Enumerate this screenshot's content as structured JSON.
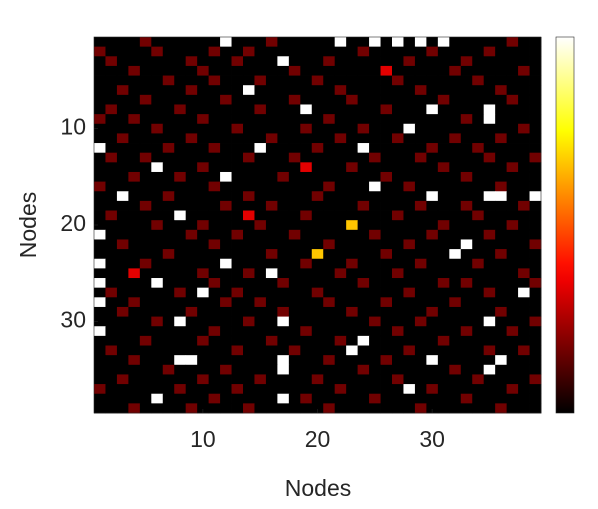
{
  "chart_data": {
    "type": "heatmap",
    "colormap": "hot",
    "xlabel": "Nodes",
    "ylabel": "Nodes",
    "xlim": [
      0.5,
      39.5
    ],
    "ylim": [
      0.5,
      39.5
    ],
    "xticks": [
      10,
      20,
      30
    ],
    "yticks": [
      10,
      20,
      30
    ],
    "zlim": [
      0,
      6
    ],
    "colorbar": true,
    "z": [
      [
        0,
        0,
        0,
        0,
        1,
        0,
        0,
        0,
        0,
        0,
        0,
        6,
        0,
        0,
        0,
        1,
        0,
        0,
        0,
        0,
        0,
        6,
        0,
        0,
        6,
        0,
        6,
        0,
        6,
        0,
        6,
        0,
        0,
        0,
        0,
        0,
        1,
        0,
        0
      ],
      [
        1,
        0,
        0,
        0,
        0,
        1,
        0,
        0,
        0,
        0,
        1,
        0,
        0,
        1,
        0,
        0,
        0,
        0,
        0,
        0,
        0,
        0,
        0,
        1,
        0,
        0,
        0,
        0,
        0,
        1,
        0,
        0,
        0,
        0,
        1,
        0,
        0,
        0,
        0
      ],
      [
        0,
        1,
        0,
        0,
        0,
        0,
        0,
        0,
        1,
        0,
        0,
        0,
        1,
        0,
        0,
        0,
        6,
        0,
        0,
        0,
        1,
        0,
        0,
        0,
        0,
        0,
        0,
        1,
        0,
        0,
        0,
        0,
        1,
        0,
        0,
        0,
        0,
        0,
        0
      ],
      [
        0,
        0,
        0,
        1,
        0,
        0,
        0,
        0,
        0,
        1,
        0,
        0,
        0,
        0,
        0,
        0,
        0,
        1,
        0,
        0,
        0,
        0,
        0,
        0,
        0,
        2,
        0,
        0,
        0,
        0,
        0,
        1,
        0,
        0,
        0,
        0,
        0,
        1,
        0
      ],
      [
        0,
        0,
        0,
        0,
        0,
        0,
        1,
        0,
        0,
        0,
        1,
        0,
        0,
        0,
        1,
        0,
        0,
        0,
        0,
        1,
        0,
        0,
        0,
        0,
        0,
        0,
        1,
        0,
        0,
        0,
        0,
        0,
        0,
        1,
        0,
        0,
        0,
        0,
        0
      ],
      [
        0,
        0,
        1,
        0,
        0,
        0,
        0,
        0,
        1,
        0,
        0,
        0,
        0,
        6,
        0,
        0,
        0,
        0,
        0,
        0,
        0,
        1,
        0,
        0,
        0,
        0,
        0,
        0,
        1,
        0,
        0,
        0,
        0,
        0,
        0,
        1,
        0,
        0,
        0
      ],
      [
        0,
        0,
        0,
        0,
        1,
        0,
        0,
        0,
        0,
        0,
        0,
        1,
        0,
        0,
        0,
        0,
        0,
        1,
        0,
        0,
        0,
        0,
        1,
        0,
        0,
        0,
        0,
        0,
        0,
        0,
        1,
        0,
        0,
        0,
        0,
        0,
        1,
        0,
        0
      ],
      [
        0,
        1,
        0,
        0,
        0,
        0,
        0,
        1,
        0,
        0,
        0,
        0,
        0,
        0,
        1,
        0,
        0,
        0,
        6,
        0,
        0,
        0,
        0,
        0,
        0,
        1,
        0,
        0,
        0,
        6,
        0,
        0,
        0,
        0,
        6,
        0,
        0,
        0,
        0
      ],
      [
        1,
        0,
        0,
        1,
        0,
        0,
        0,
        0,
        0,
        1,
        0,
        0,
        0,
        0,
        0,
        0,
        0,
        0,
        0,
        0,
        1,
        0,
        0,
        0,
        0,
        0,
        0,
        0,
        0,
        0,
        0,
        0,
        1,
        0,
        6,
        0,
        0,
        0,
        0
      ],
      [
        0,
        0,
        0,
        0,
        0,
        1,
        0,
        0,
        0,
        0,
        0,
        0,
        1,
        0,
        0,
        0,
        0,
        0,
        1,
        0,
        0,
        0,
        0,
        1,
        0,
        0,
        0,
        6,
        0,
        0,
        0,
        0,
        0,
        0,
        0,
        0,
        0,
        1,
        0
      ],
      [
        0,
        0,
        1,
        0,
        0,
        0,
        0,
        0,
        1,
        0,
        0,
        0,
        0,
        0,
        0,
        1,
        0,
        0,
        0,
        0,
        0,
        1,
        0,
        0,
        0,
        0,
        1,
        0,
        0,
        0,
        0,
        1,
        0,
        0,
        0,
        1,
        0,
        0,
        0
      ],
      [
        6,
        0,
        0,
        0,
        0,
        0,
        1,
        0,
        0,
        0,
        1,
        0,
        0,
        0,
        6,
        0,
        0,
        0,
        0,
        1,
        0,
        0,
        0,
        6,
        0,
        0,
        0,
        0,
        0,
        1,
        0,
        0,
        0,
        1,
        0,
        0,
        0,
        0,
        0
      ],
      [
        0,
        1,
        0,
        0,
        1,
        0,
        0,
        0,
        0,
        0,
        0,
        0,
        0,
        1,
        0,
        0,
        0,
        1,
        0,
        0,
        0,
        0,
        0,
        0,
        1,
        0,
        0,
        0,
        1,
        0,
        0,
        0,
        0,
        0,
        1,
        0,
        0,
        0,
        1
      ],
      [
        0,
        0,
        0,
        0,
        0,
        6,
        0,
        0,
        0,
        1,
        0,
        0,
        0,
        0,
        0,
        0,
        0,
        0,
        2,
        0,
        0,
        0,
        1,
        0,
        0,
        0,
        0,
        0,
        0,
        0,
        1,
        0,
        0,
        0,
        0,
        0,
        1,
        0,
        0
      ],
      [
        0,
        0,
        0,
        1,
        0,
        0,
        0,
        1,
        0,
        0,
        0,
        6,
        0,
        0,
        0,
        0,
        1,
        0,
        0,
        0,
        0,
        0,
        0,
        0,
        0,
        1,
        0,
        0,
        0,
        0,
        0,
        0,
        1,
        0,
        0,
        0,
        0,
        0,
        0
      ],
      [
        1,
        0,
        0,
        0,
        0,
        0,
        0,
        0,
        0,
        0,
        1,
        0,
        0,
        0,
        0,
        0,
        0,
        0,
        0,
        0,
        1,
        0,
        0,
        0,
        6,
        0,
        0,
        1,
        0,
        0,
        0,
        0,
        0,
        0,
        0,
        1,
        0,
        0,
        0
      ],
      [
        0,
        0,
        6,
        0,
        0,
        0,
        1,
        0,
        0,
        0,
        0,
        0,
        0,
        1,
        0,
        0,
        0,
        0,
        0,
        1,
        0,
        0,
        0,
        0,
        0,
        0,
        0,
        0,
        0,
        6,
        0,
        0,
        0,
        0,
        6,
        6,
        0,
        0,
        6
      ],
      [
        0,
        0,
        0,
        0,
        1,
        0,
        0,
        0,
        0,
        0,
        0,
        1,
        0,
        0,
        0,
        1,
        0,
        0,
        0,
        0,
        0,
        0,
        0,
        1,
        0,
        0,
        0,
        0,
        1,
        0,
        0,
        0,
        1,
        0,
        0,
        0,
        0,
        1,
        0
      ],
      [
        0,
        1,
        0,
        0,
        0,
        0,
        0,
        6,
        0,
        0,
        0,
        0,
        0,
        2,
        0,
        0,
        0,
        0,
        1,
        0,
        0,
        0,
        0,
        0,
        0,
        0,
        1,
        0,
        0,
        0,
        0,
        0,
        0,
        1,
        0,
        0,
        0,
        0,
        0
      ],
      [
        0,
        0,
        0,
        0,
        0,
        1,
        0,
        0,
        0,
        1,
        0,
        0,
        0,
        0,
        1,
        0,
        0,
        0,
        0,
        0,
        0,
        0,
        4,
        0,
        0,
        0,
        0,
        0,
        0,
        0,
        1,
        0,
        0,
        0,
        0,
        0,
        1,
        0,
        0
      ],
      [
        6,
        0,
        0,
        0,
        0,
        0,
        0,
        0,
        1,
        0,
        0,
        0,
        1,
        0,
        0,
        0,
        0,
        1,
        0,
        0,
        0,
        0,
        0,
        0,
        1,
        0,
        0,
        0,
        0,
        1,
        0,
        0,
        0,
        0,
        1,
        0,
        0,
        0,
        0
      ],
      [
        0,
        0,
        1,
        0,
        0,
        0,
        0,
        0,
        0,
        0,
        1,
        0,
        0,
        0,
        0,
        0,
        0,
        0,
        0,
        0,
        1,
        0,
        0,
        0,
        0,
        0,
        0,
        1,
        0,
        0,
        0,
        0,
        6,
        0,
        0,
        0,
        0,
        0,
        1
      ],
      [
        0,
        0,
        0,
        0,
        0,
        0,
        1,
        0,
        0,
        0,
        0,
        0,
        0,
        0,
        0,
        1,
        0,
        0,
        0,
        4,
        0,
        0,
        0,
        0,
        0,
        1,
        0,
        0,
        0,
        0,
        0,
        6,
        0,
        0,
        0,
        1,
        0,
        0,
        0
      ],
      [
        6,
        0,
        0,
        0,
        1,
        0,
        0,
        0,
        0,
        0,
        0,
        6,
        0,
        0,
        0,
        0,
        0,
        0,
        1,
        0,
        0,
        0,
        1,
        0,
        0,
        0,
        0,
        0,
        1,
        0,
        0,
        0,
        0,
        1,
        0,
        0,
        0,
        0,
        0
      ],
      [
        0,
        0,
        0,
        2,
        0,
        0,
        0,
        0,
        0,
        1,
        0,
        0,
        0,
        1,
        0,
        6,
        0,
        0,
        0,
        0,
        0,
        1,
        0,
        0,
        0,
        0,
        1,
        0,
        0,
        0,
        0,
        0,
        0,
        0,
        0,
        0,
        0,
        1,
        0
      ],
      [
        6,
        0,
        0,
        0,
        0,
        6,
        0,
        0,
        0,
        0,
        1,
        0,
        0,
        0,
        0,
        0,
        1,
        0,
        0,
        0,
        0,
        0,
        0,
        1,
        0,
        0,
        0,
        0,
        0,
        0,
        1,
        0,
        1,
        0,
        0,
        0,
        0,
        0,
        1
      ],
      [
        0,
        1,
        0,
        0,
        0,
        0,
        0,
        1,
        0,
        6,
        0,
        0,
        1,
        0,
        0,
        0,
        0,
        0,
        0,
        1,
        0,
        0,
        0,
        0,
        0,
        0,
        0,
        1,
        0,
        0,
        0,
        0,
        0,
        0,
        1,
        0,
        0,
        6,
        0
      ],
      [
        6,
        0,
        0,
        1,
        0,
        0,
        0,
        0,
        0,
        0,
        0,
        1,
        0,
        0,
        1,
        0,
        0,
        0,
        0,
        0,
        1,
        0,
        0,
        0,
        0,
        1,
        0,
        0,
        0,
        0,
        0,
        1,
        0,
        0,
        0,
        0,
        0,
        0,
        0
      ],
      [
        0,
        0,
        1,
        0,
        0,
        0,
        0,
        0,
        1,
        0,
        0,
        0,
        0,
        0,
        0,
        0,
        1,
        0,
        0,
        0,
        0,
        0,
        1,
        0,
        0,
        0,
        0,
        0,
        0,
        1,
        0,
        0,
        0,
        0,
        0,
        1,
        0,
        0,
        0
      ],
      [
        0,
        0,
        0,
        0,
        0,
        1,
        0,
        6,
        0,
        0,
        0,
        0,
        0,
        1,
        0,
        0,
        6,
        0,
        0,
        0,
        0,
        0,
        0,
        0,
        1,
        0,
        0,
        0,
        1,
        0,
        0,
        0,
        0,
        0,
        6,
        0,
        0,
        0,
        1
      ],
      [
        6,
        0,
        0,
        0,
        0,
        0,
        0,
        0,
        0,
        0,
        1,
        0,
        0,
        0,
        0,
        0,
        0,
        0,
        1,
        0,
        0,
        0,
        0,
        0,
        0,
        0,
        1,
        0,
        0,
        0,
        0,
        0,
        1,
        0,
        0,
        0,
        1,
        0,
        0
      ],
      [
        0,
        0,
        0,
        0,
        1,
        0,
        0,
        0,
        0,
        1,
        0,
        0,
        0,
        0,
        0,
        1,
        0,
        0,
        0,
        0,
        0,
        1,
        0,
        6,
        0,
        0,
        0,
        0,
        0,
        0,
        1,
        0,
        0,
        0,
        0,
        0,
        0,
        0,
        0
      ],
      [
        0,
        1,
        0,
        0,
        0,
        0,
        0,
        0,
        0,
        0,
        0,
        0,
        1,
        0,
        0,
        0,
        0,
        1,
        0,
        0,
        0,
        0,
        6,
        0,
        0,
        0,
        0,
        1,
        0,
        0,
        0,
        0,
        0,
        0,
        1,
        0,
        0,
        1,
        0
      ],
      [
        0,
        0,
        0,
        1,
        0,
        0,
        0,
        6,
        6,
        0,
        0,
        0,
        0,
        0,
        0,
        0,
        6,
        0,
        0,
        0,
        1,
        0,
        0,
        0,
        0,
        1,
        0,
        0,
        0,
        6,
        0,
        0,
        0,
        0,
        0,
        6,
        0,
        0,
        0
      ],
      [
        0,
        0,
        0,
        0,
        0,
        0,
        1,
        0,
        0,
        0,
        0,
        1,
        0,
        0,
        0,
        0,
        6,
        0,
        0,
        0,
        0,
        0,
        0,
        1,
        0,
        0,
        0,
        0,
        0,
        0,
        0,
        1,
        0,
        0,
        6,
        0,
        0,
        0,
        0
      ],
      [
        0,
        0,
        1,
        0,
        0,
        0,
        0,
        0,
        0,
        1,
        0,
        0,
        0,
        0,
        1,
        0,
        0,
        0,
        0,
        1,
        0,
        0,
        0,
        0,
        0,
        0,
        1,
        0,
        0,
        0,
        0,
        0,
        0,
        1,
        0,
        0,
        0,
        0,
        1
      ],
      [
        1,
        0,
        0,
        0,
        0,
        0,
        0,
        1,
        0,
        0,
        0,
        0,
        1,
        0,
        0,
        0,
        0,
        0,
        0,
        0,
        0,
        1,
        0,
        0,
        0,
        0,
        0,
        6,
        0,
        1,
        0,
        0,
        0,
        0,
        0,
        0,
        1,
        0,
        0
      ],
      [
        0,
        0,
        0,
        0,
        0,
        6,
        0,
        0,
        0,
        0,
        1,
        0,
        0,
        0,
        0,
        0,
        6,
        0,
        1,
        0,
        0,
        0,
        0,
        0,
        1,
        0,
        0,
        0,
        0,
        0,
        0,
        0,
        1,
        0,
        0,
        0,
        0,
        0,
        0
      ],
      [
        0,
        0,
        0,
        1,
        0,
        0,
        0,
        0,
        1,
        0,
        0,
        0,
        0,
        1,
        0,
        0,
        0,
        0,
        0,
        0,
        1,
        0,
        0,
        0,
        0,
        0,
        0,
        0,
        1,
        0,
        0,
        0,
        0,
        0,
        0,
        1,
        0,
        0,
        0
      ]
    ]
  }
}
